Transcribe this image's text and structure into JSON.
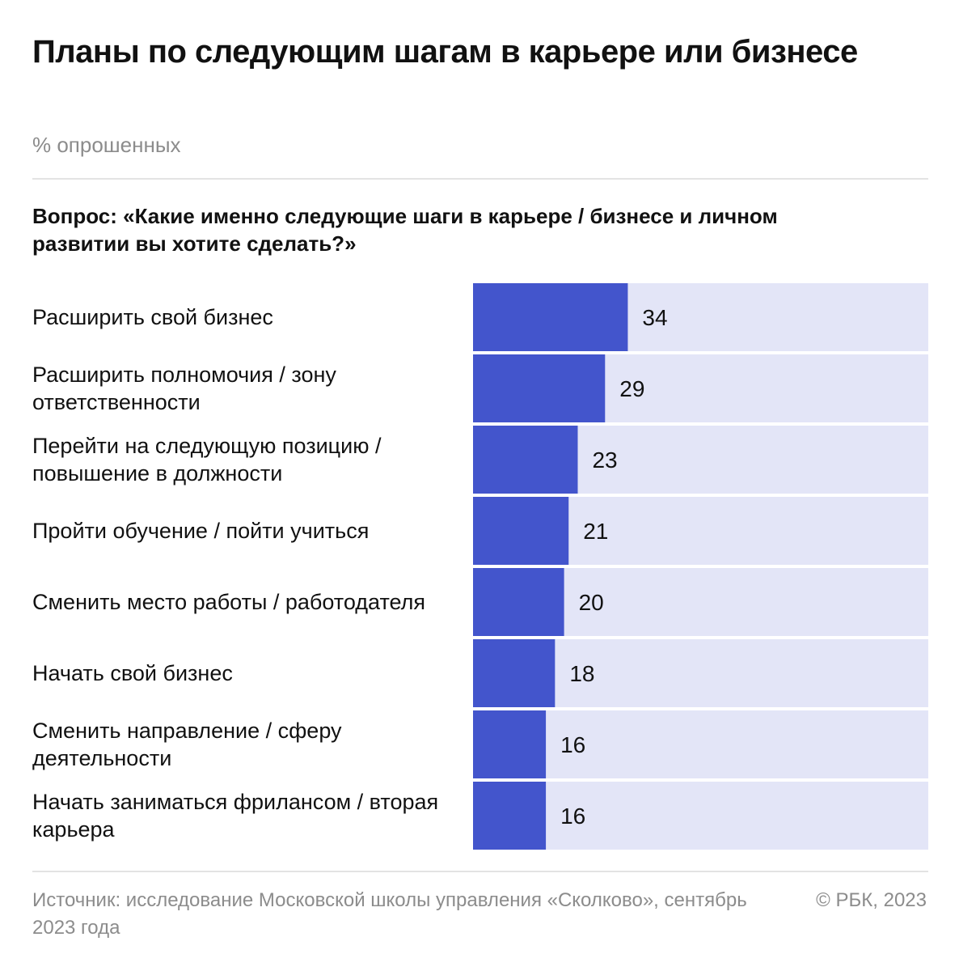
{
  "header": {
    "title": "Планы по следующим шагам в карьере или бизнесе",
    "subtitle": "% опрошенных",
    "question": "Вопрос: «Какие именно следующие шаги в карьере / бизнесе и личном развитии вы хотите сделать?»"
  },
  "chart_data": {
    "type": "bar",
    "orientation": "horizontal",
    "title": "Планы по следующим шагам в карьере или бизнесе",
    "unit": "% опрошенных",
    "categories": [
      "Расширить свой бизнес",
      "Расширить полномочия / зону ответственности",
      "Перейти на следующую позицию / повышение в должности",
      "Пройти обучение / пойти учиться",
      "Сменить место работы / работодателя",
      "Начать свой бизнес",
      "Сменить направление / сферу деятельности",
      "Начать заниматься фрилансом / вторая карьера"
    ],
    "values": [
      34,
      29,
      23,
      21,
      20,
      18,
      16,
      16
    ],
    "xlim": [
      0,
      100
    ],
    "colors": {
      "bar": "#4355cc",
      "track": "#e3e5f7"
    }
  },
  "footer": {
    "source": "Источник: исследование Московской школы управления «Сколково», сентябрь 2023 года",
    "copyright": "© РБК, 2023"
  }
}
